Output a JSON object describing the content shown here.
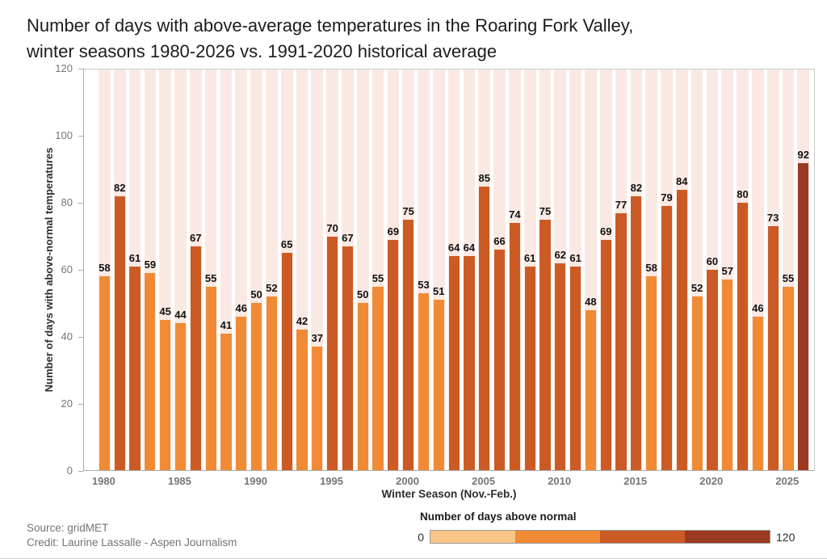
{
  "title_lines": [
    "Number of days with above-average temperatures in the Roaring Fork Valley,",
    "winter seasons 1980-2026 vs. 1991-2020 historical average"
  ],
  "chart_data": {
    "type": "bar",
    "title": "Number of days with above-average temperatures in the Roaring Fork Valley, winter seasons 1980-2026 vs. 1991-2020 historical average",
    "categories": [
      1980,
      1981,
      1982,
      1983,
      1984,
      1985,
      1986,
      1987,
      1988,
      1989,
      1990,
      1991,
      1992,
      1993,
      1994,
      1995,
      1996,
      1997,
      1998,
      1999,
      2000,
      2001,
      2002,
      2003,
      2004,
      2005,
      2006,
      2007,
      2008,
      2009,
      2010,
      2011,
      2012,
      2013,
      2014,
      2015,
      2016,
      2017,
      2018,
      2019,
      2020,
      2021,
      2022,
      2023,
      2024,
      2025,
      2026
    ],
    "values": [
      58,
      82,
      61,
      59,
      45,
      44,
      67,
      55,
      41,
      46,
      50,
      52,
      65,
      42,
      37,
      70,
      67,
      50,
      55,
      69,
      75,
      53,
      51,
      64,
      64,
      85,
      66,
      74,
      61,
      75,
      62,
      61,
      48,
      69,
      77,
      82,
      58,
      79,
      84,
      52,
      60,
      57,
      80,
      46,
      73,
      55,
      92
    ],
    "xlabel": "Winter Season (Nov.-Feb.)",
    "ylabel": "Number of days with above-normal temperatures",
    "ylim": [
      0,
      120
    ],
    "yticks": [
      0,
      20,
      40,
      60,
      80,
      100,
      120
    ],
    "xticks": [
      1980,
      1985,
      1990,
      1995,
      2000,
      2005,
      2010,
      2015,
      2020,
      2025
    ],
    "grid": "none",
    "legend_position": "bottom-right",
    "bar_color_bins": {
      "edges": [
        0,
        30,
        60,
        90,
        120
      ],
      "colors": [
        "#F9C589",
        "#F18A34",
        "#CC5A24",
        "#9A3A22"
      ]
    },
    "background_stripe_color": "#FAE9E3"
  },
  "legend": {
    "title": "Number of days above normal",
    "min_label": "0",
    "max_label": "120",
    "colors": [
      "#F9C589",
      "#F18A34",
      "#CC5A24",
      "#9A3A22"
    ]
  },
  "footer": {
    "source": "Source: gridMET",
    "credit": "Credit: Laurine Lassalle - Aspen Journalism"
  }
}
